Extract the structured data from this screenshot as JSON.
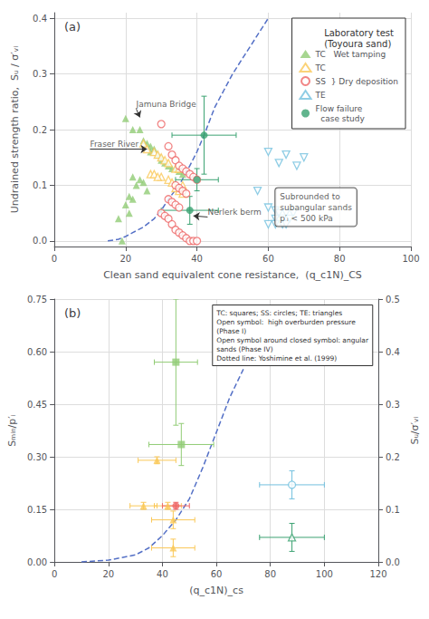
{
  "chart_data": [
    {
      "type": "scatter",
      "title": "(a)",
      "xlabel": "Clean sand equivalent cone resistance,  (q_c1N)_CS",
      "ylabel": "Undrained strength ratio,  Sᵤ / σ′ᵥᵢ",
      "xlim": [
        0,
        100
      ],
      "ylim": [
        -0.01,
        0.41
      ],
      "xticks": [
        0,
        20,
        40,
        60,
        80,
        100
      ],
      "yticks": [
        {
          "value": 0,
          "label": "0.0"
        },
        0.1,
        0.2,
        0.3,
        0.4
      ],
      "grid": true,
      "legend": "upper right",
      "legend_title": "Laboratory test\n(Toyoura sand)",
      "series": [
        {
          "type": "line",
          "line_style": "dashed",
          "x": [
            15,
            18,
            20,
            22,
            25,
            28,
            30,
            32,
            35,
            38,
            40,
            42,
            45,
            50,
            55,
            60
          ],
          "values": [
            0.0,
            0.003,
            0.008,
            0.015,
            0.025,
            0.04,
            0.055,
            0.075,
            0.1,
            0.135,
            0.16,
            0.19,
            0.24,
            0.3,
            0.35,
            0.4
          ]
        },
        {
          "name": "TC   Wet tamping",
          "type": "scatter",
          "marker": "triangle",
          "x": [
            20,
            22,
            24,
            25,
            26,
            27,
            28,
            27,
            29,
            30,
            30,
            31,
            32,
            33,
            34,
            35,
            36,
            22,
            24,
            25,
            23,
            26,
            21,
            22,
            20,
            21,
            18,
            19
          ],
          "values": [
            0.22,
            0.2,
            0.2,
            0.18,
            0.175,
            0.17,
            0.165,
            0.16,
            0.155,
            0.15,
            0.145,
            0.14,
            0.135,
            0.13,
            0.13,
            0.125,
            0.12,
            0.115,
            0.11,
            0.105,
            0.1,
            0.09,
            0.08,
            0.075,
            0.065,
            0.05,
            0.04,
            0.0
          ]
        },
        {
          "name": "TC",
          "type": "scatter",
          "marker": "triangle-open",
          "x": [
            25,
            26,
            28,
            29,
            30,
            31,
            32,
            34,
            35,
            27,
            28,
            30,
            29,
            32,
            33,
            36,
            34,
            35,
            36
          ],
          "values": [
            0.175,
            0.165,
            0.16,
            0.155,
            0.15,
            0.145,
            0.14,
            0.13,
            0.13,
            0.12,
            0.12,
            0.115,
            0.115,
            0.11,
            0.105,
            0.1,
            0.095,
            0.09,
            0.085
          ]
        },
        {
          "name": "SS  } Dry deposition",
          "type": "scatter",
          "marker": "circle-open",
          "x": [
            30,
            32,
            33,
            34,
            35,
            36,
            37,
            38,
            39,
            40,
            34,
            35,
            36,
            37,
            32,
            33,
            34,
            35,
            30,
            31,
            32,
            33,
            34,
            35,
            36,
            37,
            38,
            39,
            40
          ],
          "values": [
            0.21,
            0.17,
            0.155,
            0.145,
            0.135,
            0.13,
            0.125,
            0.12,
            0.115,
            0.11,
            0.1,
            0.095,
            0.09,
            0.085,
            0.075,
            0.07,
            0.065,
            0.06,
            0.05,
            0.045,
            0.04,
            0.03,
            0.02,
            0.015,
            0.01,
            0.005,
            0.0,
            0.0,
            0.0
          ]
        },
        {
          "name": "TE",
          "type": "scatter",
          "marker": "inverted-triangle-open",
          "x": [
            60,
            65,
            70,
            63,
            68,
            57,
            60,
            62,
            63,
            65,
            67,
            62,
            64,
            66,
            60,
            62,
            64,
            65
          ],
          "values": [
            0.16,
            0.155,
            0.15,
            0.14,
            0.135,
            0.09,
            0.06,
            0.055,
            0.05,
            0.05,
            0.05,
            0.04,
            0.04,
            0.04,
            0.03,
            0.03,
            0.03,
            0.03
          ]
        },
        {
          "name": "Flow failure\n  case study",
          "type": "scatter",
          "marker": "circle",
          "x": [
            38,
            40,
            42
          ],
          "values": [
            0.055,
            0.11,
            0.19
          ],
          "xerr": [
            8,
            6,
            9
          ],
          "yerr": [
            0.025,
            0.02,
            0.07
          ]
        }
      ],
      "annotations": [
        {
          "text": "Jamuna Bridge",
          "xy": [
            24,
            0.222
          ],
          "xytext": [
            23,
            0.237
          ]
        },
        {
          "text": "Fraser River",
          "xy": [
            26,
            0.165
          ],
          "xytext": [
            10,
            0.165
          ]
        },
        {
          "text": "Nerlerk berm",
          "xy": [
            39,
            0.045
          ],
          "xytext": [
            43,
            0.043
          ]
        },
        {
          "text": "Subrounded to\nsubangular sands\np′ᵢ < 500 kPa",
          "xy": [
            62,
            0.095
          ]
        }
      ]
    },
    {
      "type": "scatter",
      "title": "(b)",
      "xlabel": "(q_c1N)_cs",
      "ylabel": "Sₘᵢₙ/p′ᵢ",
      "y2label": "Sᵤ/σ′ᵥᵢ",
      "xlim": [
        0,
        120
      ],
      "ylim": [
        0,
        0.75
      ],
      "y2lim": [
        0,
        0.5
      ],
      "xticks": [
        0,
        20,
        40,
        60,
        80,
        100,
        120
      ],
      "yticks": [
        {
          "value": 0,
          "label": "0.00"
        },
        0.15,
        {
          "value": 0.3,
          "label": "0.30"
        },
        0.45,
        {
          "value": 0.6,
          "label": "0.60"
        },
        0.75
      ],
      "y2ticks": [
        {
          "value": 0,
          "label": "0.0"
        },
        0.1,
        0.2,
        0.3,
        0.4,
        0.5
      ],
      "grid": true,
      "series": [
        {
          "type": "line",
          "line_style": "dashed",
          "x": [
            10,
            20,
            30,
            35,
            40,
            45,
            50,
            55,
            60,
            65,
            70
          ],
          "values": [
            0.0,
            0.005,
            0.02,
            0.04,
            0.075,
            0.12,
            0.18,
            0.27,
            0.37,
            0.47,
            0.55
          ]
        },
        {
          "type": "scatter",
          "marker": "square",
          "x": [
            45,
            47
          ],
          "values": [
            0.57,
            0.335
          ],
          "xerr": [
            8,
            12
          ],
          "yerr": [
            0.18,
            0.06
          ]
        },
        {
          "type": "scatter",
          "marker": "triangle",
          "x": [
            33,
            38,
            42,
            44,
            44
          ],
          "values": [
            0.16,
            0.29,
            0.16,
            0.12,
            0.04
          ],
          "xerr": [
            5,
            7,
            5,
            8,
            8
          ],
          "yerr": [
            0.01,
            0.01,
            0.01,
            0.025,
            0.025
          ]
        },
        {
          "type": "scatter",
          "marker": "circle",
          "x": [
            45
          ],
          "values": [
            0.16
          ],
          "xerr": [
            5
          ],
          "yerr": [
            0.01
          ]
        },
        {
          "type": "scatter",
          "marker": "circle-open",
          "x": [
            88
          ],
          "values": [
            0.22
          ],
          "xerr": [
            12
          ],
          "yerr": [
            0.04
          ]
        },
        {
          "type": "scatter",
          "marker": "triangle-open",
          "x": [
            88
          ],
          "values": [
            0.07
          ],
          "xerr": [
            12
          ],
          "yerr": [
            0.04
          ]
        }
      ],
      "annotations": [
        {
          "text": "TC: squares; SS: circles; TE: triangles\nOpen symbol:  high overburden pressure\n(Phase I)\nOpen symbol around closed symbol: angular\nsands (Phase IV)\nDotted line: Yoshimine et al. (1999)"
        }
      ]
    }
  ]
}
